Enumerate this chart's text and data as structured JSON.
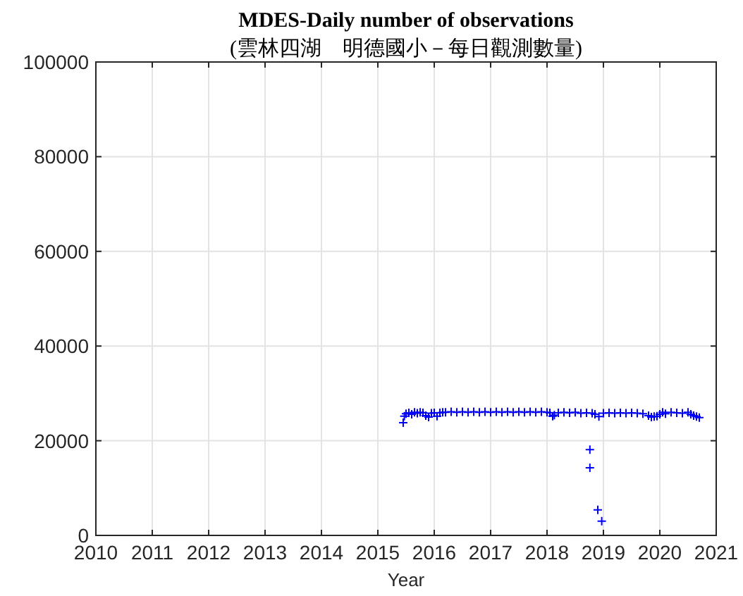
{
  "chart_data": {
    "type": "scatter",
    "title": "MDES-Daily number of observations",
    "subtitle": "(雲林四湖　明德國小－每日觀測數量)",
    "xlabel": "Year",
    "xlim": [
      2010,
      2021
    ],
    "xticks": [
      2010,
      2011,
      2012,
      2013,
      2014,
      2015,
      2016,
      2017,
      2018,
      2019,
      2020,
      2021
    ],
    "ylim": [
      0,
      100000
    ],
    "yticks": [
      0,
      20000,
      40000,
      60000,
      80000,
      100000
    ],
    "grid": true,
    "marker": "cross",
    "series": [
      {
        "color": "#0000ff",
        "x": [
          2015.45,
          2015.47,
          2015.5,
          2015.55,
          2015.6,
          2015.65,
          2015.7,
          2015.75,
          2015.8,
          2015.85,
          2015.9,
          2015.95,
          2016.0,
          2016.05,
          2016.1,
          2016.15,
          2016.2,
          2016.3,
          2016.4,
          2016.5,
          2016.6,
          2016.7,
          2016.8,
          2016.9,
          2017.0,
          2017.1,
          2017.2,
          2017.3,
          2017.4,
          2017.5,
          2017.6,
          2017.7,
          2017.8,
          2017.9,
          2018.0,
          2018.05,
          2018.1,
          2018.13,
          2018.2,
          2018.3,
          2018.4,
          2018.5,
          2018.6,
          2018.7,
          2018.76,
          2018.76,
          2018.8,
          2018.85,
          2018.9,
          2018.92,
          2018.97,
          2019.0,
          2019.1,
          2019.2,
          2019.3,
          2019.4,
          2019.5,
          2019.6,
          2019.7,
          2019.8,
          2019.85,
          2019.9,
          2019.95,
          2020.0,
          2020.05,
          2020.1,
          2020.2,
          2020.3,
          2020.4,
          2020.5,
          2020.55,
          2020.6,
          2020.65,
          2020.7
        ],
        "values": [
          23800,
          25200,
          25700,
          25900,
          25600,
          26000,
          25800,
          26000,
          25900,
          25300,
          25000,
          25800,
          25900,
          25200,
          25900,
          26000,
          26000,
          26100,
          26000,
          26100,
          26000,
          26100,
          26000,
          26100,
          26000,
          26100,
          26000,
          26100,
          26000,
          26100,
          26000,
          26100,
          26000,
          26100,
          26000,
          25900,
          25200,
          25400,
          25900,
          26000,
          25900,
          26000,
          25800,
          25900,
          18100,
          14300,
          25800,
          25600,
          5400,
          25100,
          3000,
          25800,
          25900,
          25800,
          25900,
          25800,
          25900,
          25800,
          25700,
          25300,
          25000,
          25100,
          25200,
          25600,
          26000,
          25700,
          26000,
          25900,
          25800,
          26000,
          25600,
          25300,
          25100,
          24900
        ]
      }
    ]
  }
}
